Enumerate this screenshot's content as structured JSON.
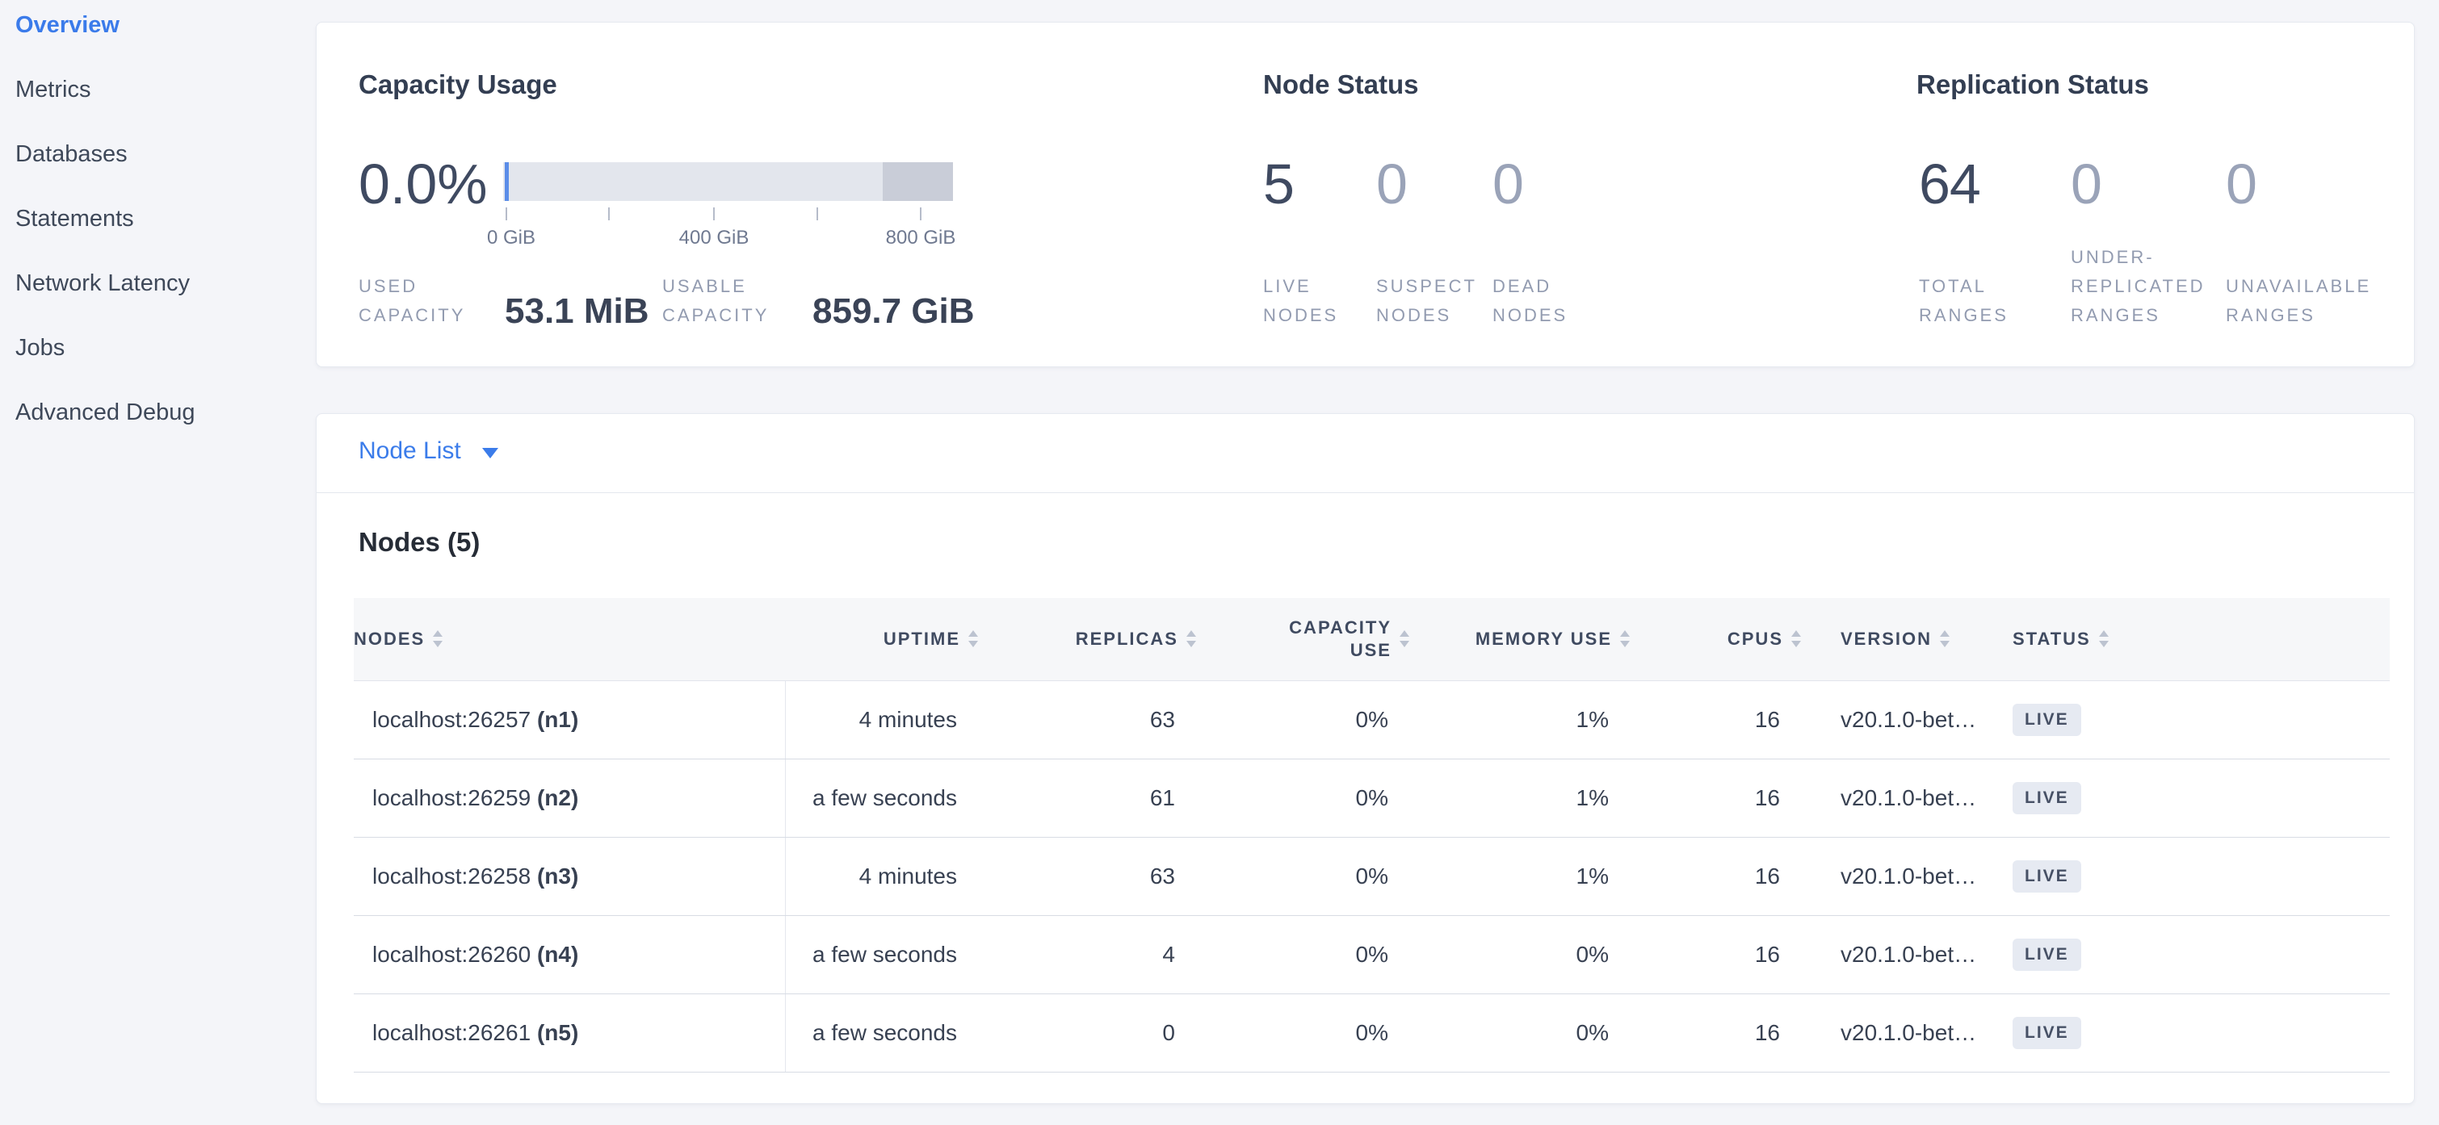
{
  "sidebar": {
    "items": [
      {
        "label": "Overview",
        "active": true
      },
      {
        "label": "Metrics",
        "active": false
      },
      {
        "label": "Databases",
        "active": false
      },
      {
        "label": "Statements",
        "active": false
      },
      {
        "label": "Network Latency",
        "active": false
      },
      {
        "label": "Jobs",
        "active": false
      },
      {
        "label": "Advanced Debug",
        "active": false
      }
    ]
  },
  "cluster_overview": {
    "capacity": {
      "title": "Capacity Usage",
      "percent": "0.0%",
      "bar": {
        "tick_labels": [
          "0 GiB",
          "400 GiB",
          "800 GiB"
        ],
        "axis_max_gib": 860,
        "used_gib": 0.052,
        "usable_gib": 859.7
      },
      "used": {
        "label": "USED\nCAPACITY",
        "value": "53.1 MiB"
      },
      "usable": {
        "label": "USABLE\nCAPACITY",
        "value": "859.7 GiB"
      }
    },
    "node_status": {
      "title": "Node Status",
      "stats": [
        {
          "value": "5",
          "label": "LIVE\nNODES",
          "muted": false
        },
        {
          "value": "0",
          "label": "SUSPECT\nNODES",
          "muted": true
        },
        {
          "value": "0",
          "label": "DEAD\nNODES",
          "muted": true
        }
      ]
    },
    "replication_status": {
      "title": "Replication Status",
      "stats": [
        {
          "value": "64",
          "label": "TOTAL\nRANGES",
          "muted": false
        },
        {
          "value": "0",
          "label": "UNDER-\nREPLICATED\nRANGES",
          "muted": true
        },
        {
          "value": "0",
          "label": "UNAVAILABLE\nRANGES",
          "muted": true
        }
      ]
    }
  },
  "node_list": {
    "selector_label": "Node List",
    "title": "Nodes (5)",
    "columns": [
      {
        "key": "node",
        "label": "NODES",
        "align": "left"
      },
      {
        "key": "uptime",
        "label": "UPTIME",
        "align": "right"
      },
      {
        "key": "replicas",
        "label": "REPLICAS",
        "align": "right"
      },
      {
        "key": "capacity",
        "label": "CAPACITY\nUSE",
        "align": "right"
      },
      {
        "key": "memory",
        "label": "MEMORY USE",
        "align": "right"
      },
      {
        "key": "cpus",
        "label": "CPUS",
        "align": "right"
      },
      {
        "key": "version",
        "label": "VERSION",
        "align": "left"
      },
      {
        "key": "status",
        "label": "STATUS",
        "align": "left"
      }
    ],
    "rows": [
      {
        "node": "localhost:26257",
        "node_id": "(n1)",
        "uptime": "4 minutes",
        "replicas": "63",
        "capacity": "0%",
        "memory": "1%",
        "cpus": "16",
        "version": "v20.1.0-bet…",
        "status": "LIVE"
      },
      {
        "node": "localhost:26259",
        "node_id": "(n2)",
        "uptime": "a few seconds",
        "replicas": "61",
        "capacity": "0%",
        "memory": "1%",
        "cpus": "16",
        "version": "v20.1.0-bet…",
        "status": "LIVE"
      },
      {
        "node": "localhost:26258",
        "node_id": "(n3)",
        "uptime": "4 minutes",
        "replicas": "63",
        "capacity": "0%",
        "memory": "1%",
        "cpus": "16",
        "version": "v20.1.0-bet…",
        "status": "LIVE"
      },
      {
        "node": "localhost:26260",
        "node_id": "(n4)",
        "uptime": "a few seconds",
        "replicas": "4",
        "capacity": "0%",
        "memory": "0%",
        "cpus": "16",
        "version": "v20.1.0-bet…",
        "status": "LIVE"
      },
      {
        "node": "localhost:26261",
        "node_id": "(n5)",
        "uptime": "a few seconds",
        "replicas": "0",
        "capacity": "0%",
        "memory": "0%",
        "cpus": "16",
        "version": "v20.1.0-bet…",
        "status": "LIVE"
      }
    ]
  },
  "colors": {
    "accent_blue": "#3b7cea",
    "bar_track": "#e3e6ed",
    "bar_non_usable": "#c9cdd8",
    "bar_used": "#5b8de8",
    "badge_bg": "#e6eaf2"
  }
}
